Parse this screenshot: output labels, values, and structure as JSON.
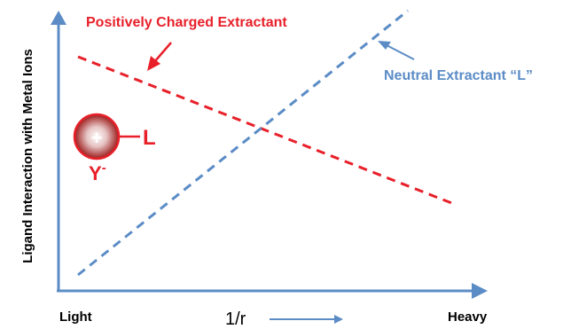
{
  "labels": {
    "y_axis": "Ligand Interaction with Metal Ions",
    "x_left": "Light",
    "x_middle": "1/r",
    "x_right": "Heavy",
    "positive_line": "Positively Charged Extractant",
    "neutral_line": "Neutral Extractant “L”",
    "ion_plus": "+",
    "ion_ligand": "L",
    "ion_counter": "Y",
    "ion_counter_sup": "-"
  },
  "colors": {
    "positive": "#e8202a",
    "neutral": "#5b8cc6",
    "axis": "#5b8cc6"
  }
}
